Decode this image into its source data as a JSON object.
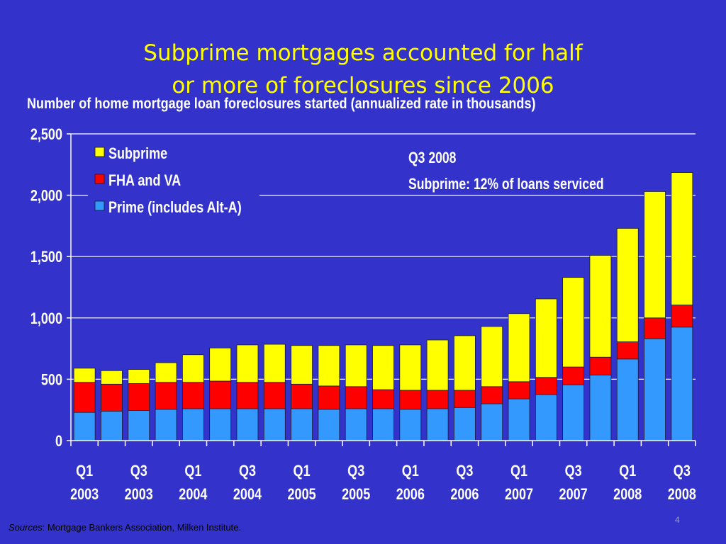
{
  "slide": {
    "title_line1": "Subprime mortgages accounted for half",
    "title_line2": "or more of foreclosures since 2006",
    "subtitle": "Number of home mortgage loan foreclosures started (annualized rate in thousands)",
    "source_label": "Sources",
    "source_text": ": Mortgage Bankers Association, Milken Institute.",
    "slide_number": "4"
  },
  "colors": {
    "background": "#3333cc",
    "title": "#ffff00",
    "subprime": "#ffff00",
    "fha_va": "#ff0000",
    "prime": "#3399ff",
    "text": "#ffffff"
  },
  "chart_data": {
    "type": "bar",
    "stacked": true,
    "title": "Number of home mortgage loan foreclosures started (annualized rate in thousands)",
    "ylim": [
      0,
      2500
    ],
    "yticks": [
      0,
      500,
      1000,
      1500,
      2000,
      2500
    ],
    "ytick_labels": [
      "0",
      "500",
      "1,000",
      "1,500",
      "2,000",
      "2,500"
    ],
    "grid": true,
    "legend_position": "top-left",
    "categories": [
      "Q1 2003",
      "Q2 2003",
      "Q3 2003",
      "Q4 2003",
      "Q1 2004",
      "Q2 2004",
      "Q3 2004",
      "Q4 2004",
      "Q1 2005",
      "Q2 2005",
      "Q3 2005",
      "Q4 2005",
      "Q1 2006",
      "Q2 2006",
      "Q3 2006",
      "Q4 2006",
      "Q1 2007",
      "Q2 2007",
      "Q3 2007",
      "Q4 2007",
      "Q1 2008",
      "Q2 2008",
      "Q3 2008"
    ],
    "xtick_labels": [
      {
        "q": "Q1",
        "y": "2003"
      },
      {
        "q": "Q3",
        "y": "2003"
      },
      {
        "q": "Q1",
        "y": "2004"
      },
      {
        "q": "Q3",
        "y": "2004"
      },
      {
        "q": "Q1",
        "y": "2005"
      },
      {
        "q": "Q3",
        "y": "2005"
      },
      {
        "q": "Q1",
        "y": "2006"
      },
      {
        "q": "Q3",
        "y": "2006"
      },
      {
        "q": "Q1",
        "y": "2007"
      },
      {
        "q": "Q3",
        "y": "2007"
      },
      {
        "q": "Q1",
        "y": "2008"
      },
      {
        "q": "Q3",
        "y": "2008"
      }
    ],
    "series": [
      {
        "name": "Prime (includes Alt-A)",
        "color": "#3399ff",
        "values": [
          230,
          240,
          245,
          255,
          260,
          260,
          260,
          260,
          260,
          255,
          260,
          260,
          255,
          260,
          270,
          300,
          340,
          375,
          455,
          535,
          665,
          830,
          925
        ]
      },
      {
        "name": "FHA and VA",
        "color": "#ff0000",
        "values": [
          245,
          220,
          220,
          220,
          215,
          225,
          215,
          215,
          200,
          190,
          180,
          155,
          155,
          150,
          140,
          140,
          140,
          140,
          145,
          145,
          140,
          170,
          180
        ]
      },
      {
        "name": "Subprime",
        "color": "#ffff00",
        "values": [
          115,
          110,
          115,
          160,
          225,
          270,
          305,
          310,
          315,
          330,
          340,
          360,
          370,
          410,
          445,
          490,
          555,
          640,
          730,
          830,
          925,
          1030,
          1080
        ]
      }
    ],
    "legend_order": [
      "Subprime",
      "FHA and VA",
      "Prime (includes Alt-A)"
    ],
    "annotation": {
      "line1": "Q3 2008",
      "line2": "Subprime: 12% of loans serviced"
    }
  }
}
